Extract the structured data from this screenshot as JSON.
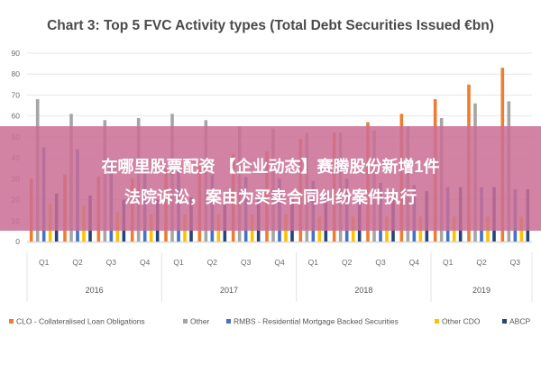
{
  "chart_data": {
    "type": "bar",
    "title": "Chart 3: Top 5 FVC Activity types (Total Debt Securities Issued €bn)",
    "xlabel": "",
    "ylabel": "",
    "ylim": [
      0,
      90
    ],
    "yticks": [
      "0",
      "10",
      "20",
      "30",
      "40",
      "50",
      "60",
      "70",
      "80",
      "90"
    ],
    "grid": true,
    "legend_position": "bottom",
    "categories": [
      "Q1",
      "Q2",
      "Q3",
      "Q4",
      "Q1",
      "Q2",
      "Q3",
      "Q4",
      "Q1",
      "Q2",
      "Q3",
      "Q4",
      "Q1",
      "Q2",
      "Q3"
    ],
    "groups": [
      {
        "label": "2016",
        "start": 0,
        "count": 4
      },
      {
        "label": "2017",
        "start": 4,
        "count": 4
      },
      {
        "label": "2018",
        "start": 8,
        "count": 4
      },
      {
        "label": "2019",
        "start": 12,
        "count": 3
      }
    ],
    "series": [
      {
        "name": "CLO - Collateralised Loan Obligations",
        "color": "#ED7D31",
        "values": [
          30,
          32,
          31,
          30,
          35,
          38,
          42,
          43,
          49,
          52,
          57,
          61,
          68,
          75,
          83
        ]
      },
      {
        "name": "Other",
        "color": "#A5A5A5",
        "values": [
          68,
          61,
          58,
          59,
          61,
          58,
          55,
          54,
          52,
          52,
          53,
          55,
          59,
          66,
          67
        ]
      },
      {
        "name": "RMBS - Residential Mortgage Backed Securities",
        "color": "#4472C4",
        "values": [
          45,
          44,
          38,
          35,
          34,
          32,
          31,
          30,
          29,
          30,
          28,
          27,
          26,
          26,
          25
        ]
      },
      {
        "name": "Other CDO",
        "color": "#FFC000",
        "values": [
          18,
          17,
          14,
          13,
          13,
          13,
          13,
          13,
          12,
          12,
          12,
          12,
          12,
          12,
          12
        ]
      },
      {
        "name": "ABCP",
        "color": "#264478",
        "values": [
          23,
          22,
          20,
          20,
          21,
          22,
          22,
          22,
          22,
          22,
          22,
          24,
          26,
          26,
          25
        ]
      }
    ]
  },
  "overlay": {
    "line1": "在哪里股票配资 【企业动态】赛腾股份新增1件",
    "line2": "法院诉讼，案由为买卖合同纠纷案件执行"
  },
  "colors": {
    "overlay_band": "#CB6F95",
    "grid": "#e6e6e6"
  }
}
